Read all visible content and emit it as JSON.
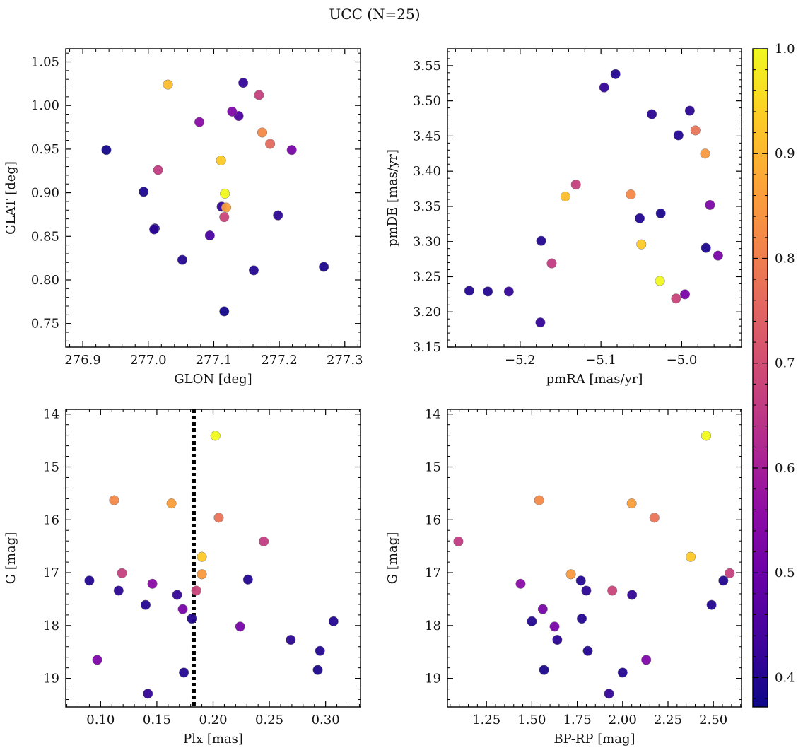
{
  "figure": {
    "title": "UCC (N=25)"
  },
  "colorbar": {
    "colormap": "plasma",
    "range": [
      0.372,
      1.0
    ],
    "ticks": [
      0.4,
      0.5,
      0.6,
      0.7,
      0.8,
      0.9,
      1.0
    ],
    "tick_labels": [
      "0.4",
      "0.5",
      "0.6",
      "0.7",
      "0.8",
      "0.9",
      "1.0"
    ]
  },
  "chart_data": [
    {
      "type": "scatter",
      "panel": "top-left",
      "xlabel": "GLON [deg]",
      "ylabel": "GLAT [deg]",
      "xlim": [
        276.874,
        277.324
      ],
      "ylim": [
        0.723,
        1.065
      ],
      "y_inverted": false,
      "xticks": [
        276.9,
        277.0,
        277.1,
        277.2,
        277.3
      ],
      "xtick_labels": [
        "276.9",
        "277.0",
        "277.1",
        "277.2",
        "277.3"
      ],
      "yticks": [
        0.75,
        0.8,
        0.85,
        0.9,
        0.95,
        1.0,
        1.05
      ],
      "ytick_labels": [
        "0.75",
        "0.80",
        "0.85",
        "0.90",
        "0.95",
        "1.00",
        "1.05"
      ],
      "points": [
        {
          "x": 276.936,
          "y": 0.949,
          "c": 0.38
        },
        {
          "x": 276.993,
          "y": 0.901,
          "c": 0.39
        },
        {
          "x": 277.01,
          "y": 0.859,
          "c": 0.4
        },
        {
          "x": 277.009,
          "y": 0.858,
          "c": 0.41
        },
        {
          "x": 277.015,
          "y": 0.926,
          "c": 0.66
        },
        {
          "x": 277.03,
          "y": 1.024,
          "c": 0.91
        },
        {
          "x": 277.052,
          "y": 0.823,
          "c": 0.4
        },
        {
          "x": 277.078,
          "y": 0.981,
          "c": 0.55
        },
        {
          "x": 277.094,
          "y": 0.851,
          "c": 0.45
        },
        {
          "x": 277.111,
          "y": 0.937,
          "c": 0.93
        },
        {
          "x": 277.112,
          "y": 0.884,
          "c": 0.42
        },
        {
          "x": 277.116,
          "y": 0.764,
          "c": 0.38
        },
        {
          "x": 277.117,
          "y": 0.899,
          "c": 1.0
        },
        {
          "x": 277.119,
          "y": 0.883,
          "c": 0.86
        },
        {
          "x": 277.116,
          "y": 0.872,
          "c": 0.68
        },
        {
          "x": 277.128,
          "y": 0.993,
          "c": 0.53
        },
        {
          "x": 277.138,
          "y": 0.988,
          "c": 0.46
        },
        {
          "x": 277.145,
          "y": 1.026,
          "c": 0.42
        },
        {
          "x": 277.161,
          "y": 0.811,
          "c": 0.4
        },
        {
          "x": 277.169,
          "y": 1.012,
          "c": 0.67
        },
        {
          "x": 277.174,
          "y": 0.969,
          "c": 0.82
        },
        {
          "x": 277.186,
          "y": 0.956,
          "c": 0.76
        },
        {
          "x": 277.198,
          "y": 0.874,
          "c": 0.41
        },
        {
          "x": 277.219,
          "y": 0.949,
          "c": 0.52
        },
        {
          "x": 277.268,
          "y": 0.815,
          "c": 0.39
        }
      ]
    },
    {
      "type": "scatter",
      "panel": "top-right",
      "xlabel": "pmRA [mas/yr]",
      "ylabel": "pmDE [mas/yr]",
      "xlim": [
        -5.29,
        -4.926
      ],
      "ylim": [
        3.15,
        3.574
      ],
      "y_inverted": false,
      "xticks": [
        -5.2,
        -5.1,
        -5.0
      ],
      "xtick_labels": [
        "−5.2",
        "−5.1",
        "−5.0"
      ],
      "yticks": [
        3.15,
        3.2,
        3.25,
        3.3,
        3.35,
        3.4,
        3.45,
        3.5,
        3.55
      ],
      "ytick_labels": [
        "3.15",
        "3.20",
        "3.25",
        "3.30",
        "3.35",
        "3.40",
        "3.45",
        "3.50",
        "3.55"
      ],
      "points": [
        {
          "x": -5.263,
          "y": 3.23,
          "c": 0.4
        },
        {
          "x": -5.24,
          "y": 3.229,
          "c": 0.4
        },
        {
          "x": -5.214,
          "y": 3.229,
          "c": 0.42
        },
        {
          "x": -5.175,
          "y": 3.185,
          "c": 0.42
        },
        {
          "x": -5.174,
          "y": 3.301,
          "c": 0.4
        },
        {
          "x": -5.161,
          "y": 3.269,
          "c": 0.66
        },
        {
          "x": -5.144,
          "y": 3.364,
          "c": 0.91
        },
        {
          "x": -5.131,
          "y": 3.381,
          "c": 0.67
        },
        {
          "x": -5.096,
          "y": 3.519,
          "c": 0.42
        },
        {
          "x": -5.082,
          "y": 3.538,
          "c": 0.4
        },
        {
          "x": -5.063,
          "y": 3.367,
          "c": 0.82
        },
        {
          "x": -5.052,
          "y": 3.333,
          "c": 0.4
        },
        {
          "x": -5.05,
          "y": 3.296,
          "c": 0.93
        },
        {
          "x": -5.037,
          "y": 3.481,
          "c": 0.41
        },
        {
          "x": -5.026,
          "y": 3.34,
          "c": 0.39
        },
        {
          "x": -5.027,
          "y": 3.244,
          "c": 1.0
        },
        {
          "x": -5.007,
          "y": 3.219,
          "c": 0.68
        },
        {
          "x": -5.004,
          "y": 3.451,
          "c": 0.4
        },
        {
          "x": -4.996,
          "y": 3.225,
          "c": 0.52
        },
        {
          "x": -4.99,
          "y": 3.486,
          "c": 0.41
        },
        {
          "x": -4.983,
          "y": 3.458,
          "c": 0.78
        },
        {
          "x": -4.971,
          "y": 3.425,
          "c": 0.85
        },
        {
          "x": -4.97,
          "y": 3.291,
          "c": 0.39
        },
        {
          "x": -4.965,
          "y": 3.352,
          "c": 0.53
        },
        {
          "x": -4.955,
          "y": 3.28,
          "c": 0.52
        }
      ]
    },
    {
      "type": "scatter",
      "panel": "bottom-left",
      "xlabel": "Plx [mas]",
      "ylabel": "G [mag]",
      "xlim": [
        0.069,
        0.331
      ],
      "ylim": [
        19.54,
        13.91
      ],
      "y_inverted": true,
      "vline": {
        "x": 0.183,
        "style": "dotted",
        "color": "#000000"
      },
      "xticks": [
        0.1,
        0.15,
        0.2,
        0.25,
        0.3
      ],
      "xtick_labels": [
        "0.10",
        "0.15",
        "0.20",
        "0.25",
        "0.30"
      ],
      "yticks": [
        14,
        15,
        16,
        17,
        18,
        19
      ],
      "ytick_labels": [
        "14",
        "15",
        "16",
        "17",
        "18",
        "19"
      ],
      "points": [
        {
          "x": 0.09,
          "y": 17.15,
          "c": 0.4
        },
        {
          "x": 0.097,
          "y": 18.65,
          "c": 0.53
        },
        {
          "x": 0.112,
          "y": 15.63,
          "c": 0.82
        },
        {
          "x": 0.116,
          "y": 17.34,
          "c": 0.41
        },
        {
          "x": 0.119,
          "y": 17.01,
          "c": 0.67
        },
        {
          "x": 0.14,
          "y": 17.61,
          "c": 0.4
        },
        {
          "x": 0.142,
          "y": 19.29,
          "c": 0.42
        },
        {
          "x": 0.146,
          "y": 17.21,
          "c": 0.55
        },
        {
          "x": 0.163,
          "y": 15.69,
          "c": 0.86
        },
        {
          "x": 0.168,
          "y": 17.42,
          "c": 0.42
        },
        {
          "x": 0.173,
          "y": 17.69,
          "c": 0.52
        },
        {
          "x": 0.174,
          "y": 18.89,
          "c": 0.4
        },
        {
          "x": 0.181,
          "y": 17.87,
          "c": 0.4
        },
        {
          "x": 0.185,
          "y": 17.34,
          "c": 0.68
        },
        {
          "x": 0.19,
          "y": 16.7,
          "c": 0.93
        },
        {
          "x": 0.19,
          "y": 17.03,
          "c": 0.85
        },
        {
          "x": 0.202,
          "y": 14.41,
          "c": 1.0
        },
        {
          "x": 0.205,
          "y": 15.96,
          "c": 0.78
        },
        {
          "x": 0.224,
          "y": 18.02,
          "c": 0.52
        },
        {
          "x": 0.231,
          "y": 17.13,
          "c": 0.4
        },
        {
          "x": 0.245,
          "y": 16.41,
          "c": 0.66
        },
        {
          "x": 0.269,
          "y": 18.27,
          "c": 0.41
        },
        {
          "x": 0.293,
          "y": 18.84,
          "c": 0.39
        },
        {
          "x": 0.295,
          "y": 18.48,
          "c": 0.4
        },
        {
          "x": 0.307,
          "y": 17.92,
          "c": 0.4
        }
      ]
    },
    {
      "type": "scatter",
      "panel": "bottom-right",
      "xlabel": "BP-RP [mag]",
      "ylabel": "G [mag]",
      "xlim": [
        1.035,
        2.655
      ],
      "ylim": [
        19.54,
        13.91
      ],
      "y_inverted": true,
      "xticks": [
        1.25,
        1.5,
        1.75,
        2.0,
        2.25,
        2.5
      ],
      "xtick_labels": [
        "1.25",
        "1.50",
        "1.75",
        "2.00",
        "2.25",
        "2.50"
      ],
      "yticks": [
        14,
        15,
        16,
        17,
        18,
        19
      ],
      "ytick_labels": [
        "14",
        "15",
        "16",
        "17",
        "18",
        "19"
      ],
      "points": [
        {
          "x": 1.095,
          "y": 16.41,
          "c": 0.66
        },
        {
          "x": 1.438,
          "y": 17.21,
          "c": 0.55
        },
        {
          "x": 1.5,
          "y": 17.92,
          "c": 0.4
        },
        {
          "x": 1.54,
          "y": 15.63,
          "c": 0.82
        },
        {
          "x": 1.56,
          "y": 17.69,
          "c": 0.52
        },
        {
          "x": 1.567,
          "y": 18.84,
          "c": 0.39
        },
        {
          "x": 1.625,
          "y": 18.02,
          "c": 0.52
        },
        {
          "x": 1.64,
          "y": 18.27,
          "c": 0.41
        },
        {
          "x": 1.715,
          "y": 17.03,
          "c": 0.85
        },
        {
          "x": 1.77,
          "y": 17.15,
          "c": 0.4
        },
        {
          "x": 1.775,
          "y": 17.87,
          "c": 0.4
        },
        {
          "x": 1.8,
          "y": 17.34,
          "c": 0.41
        },
        {
          "x": 1.808,
          "y": 18.48,
          "c": 0.4
        },
        {
          "x": 1.925,
          "y": 19.29,
          "c": 0.42
        },
        {
          "x": 1.943,
          "y": 17.34,
          "c": 0.68
        },
        {
          "x": 2.0,
          "y": 18.89,
          "c": 0.4
        },
        {
          "x": 2.05,
          "y": 15.69,
          "c": 0.86
        },
        {
          "x": 2.052,
          "y": 17.42,
          "c": 0.42
        },
        {
          "x": 2.13,
          "y": 18.65,
          "c": 0.53
        },
        {
          "x": 2.175,
          "y": 15.96,
          "c": 0.78
        },
        {
          "x": 2.375,
          "y": 16.7,
          "c": 0.93
        },
        {
          "x": 2.46,
          "y": 14.41,
          "c": 1.0
        },
        {
          "x": 2.49,
          "y": 17.61,
          "c": 0.4
        },
        {
          "x": 2.555,
          "y": 17.15,
          "c": 0.4
        },
        {
          "x": 2.59,
          "y": 17.01,
          "c": 0.67
        }
      ]
    }
  ]
}
